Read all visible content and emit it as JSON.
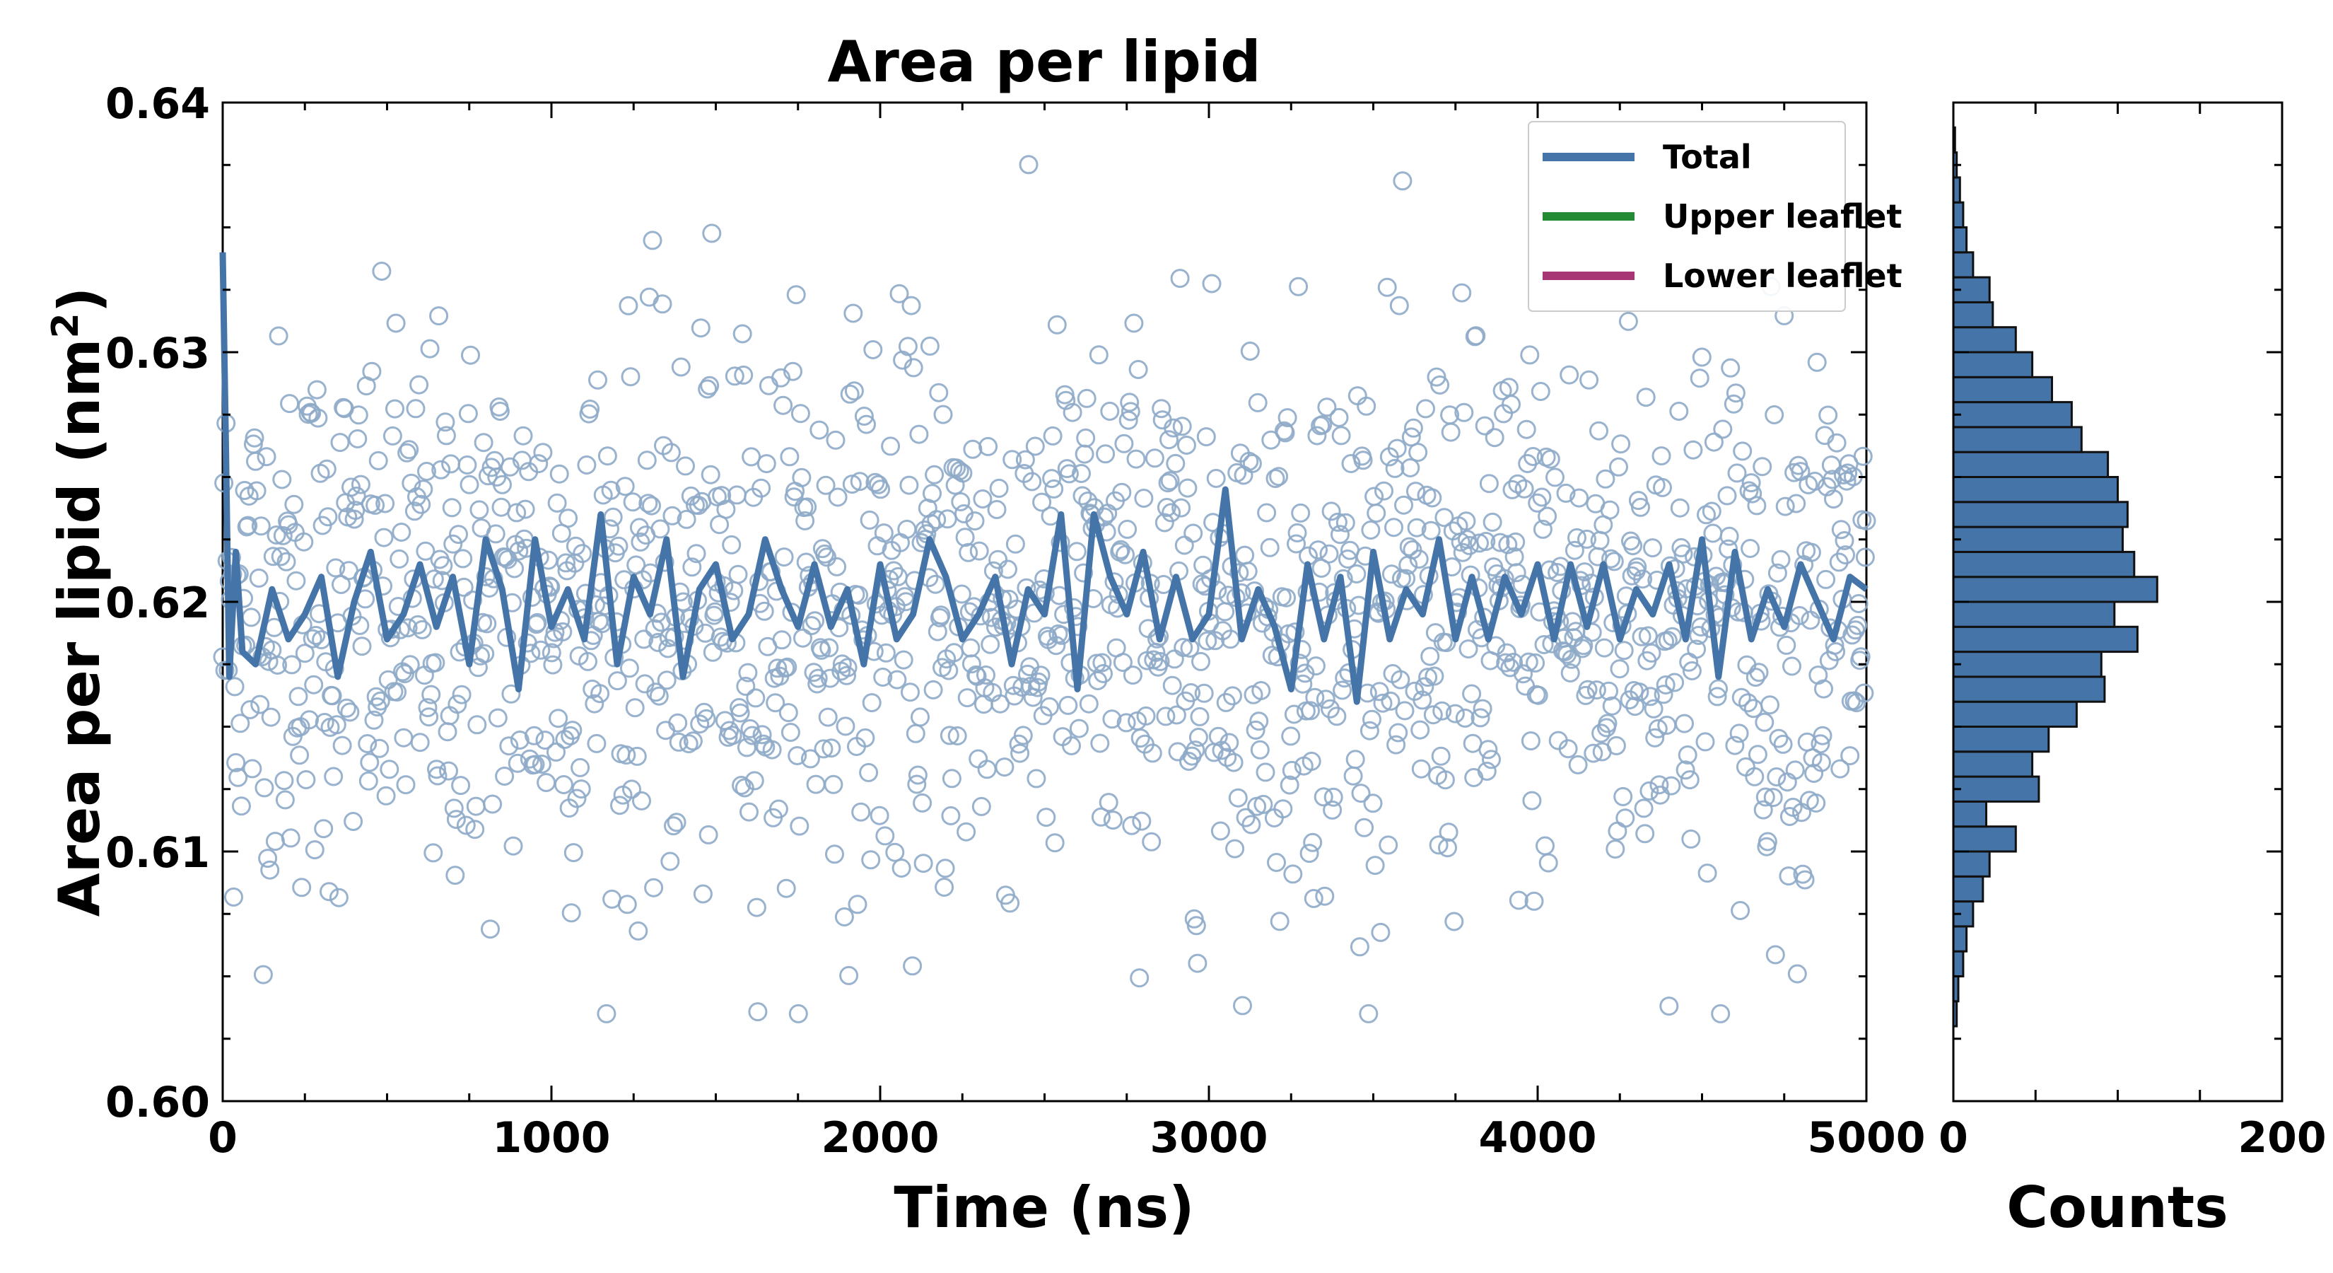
{
  "chart_data": [
    {
      "type": "scatter",
      "title": "Area per lipid",
      "xlabel": "Time (ns)",
      "ylabel": "Area per lipid (nm",
      "ylabel_sup": "2",
      "ylabel_close": ")",
      "xlim": [
        0,
        5000
      ],
      "ylim": [
        0.6,
        0.64
      ],
      "x_ticks": [
        0,
        1000,
        2000,
        3000,
        4000,
        5000
      ],
      "x_tick_labels": [
        "0",
        "1000",
        "2000",
        "3000",
        "4000",
        "5000"
      ],
      "y_ticks": [
        0.6,
        0.61,
        0.62,
        0.63,
        0.64
      ],
      "y_tick_labels": [
        "0.60",
        "0.61",
        "0.62",
        "0.63",
        "0.64"
      ],
      "grid": false,
      "legend_position": "top-right",
      "legend": [
        {
          "label": "Total",
          "color": "#4575a8"
        },
        {
          "label": "Upper leaflet",
          "color": "#228b34"
        },
        {
          "label": "Lower leaflet",
          "color": "#a63674"
        }
      ],
      "series": [
        {
          "kind": "scatter",
          "color": "#8eaac8",
          "summary": {
            "x_range": [
              0,
              5000
            ],
            "mean": 0.6195,
            "std": 0.0055,
            "n_points": 1500,
            "min": 0.6035,
            "max": 0.638
          }
        },
        {
          "name": "Total",
          "kind": "line",
          "color": "#4575a8",
          "x": [
            0,
            10,
            20,
            40,
            60,
            100,
            150,
            200,
            250,
            300,
            350,
            400,
            450,
            500,
            550,
            600,
            650,
            700,
            750,
            800,
            850,
            900,
            950,
            1000,
            1050,
            1100,
            1150,
            1200,
            1250,
            1300,
            1350,
            1400,
            1450,
            1500,
            1550,
            1600,
            1650,
            1700,
            1750,
            1800,
            1850,
            1900,
            1950,
            2000,
            2050,
            2100,
            2150,
            2200,
            2250,
            2300,
            2350,
            2400,
            2450,
            2500,
            2550,
            2600,
            2650,
            2700,
            2750,
            2800,
            2850,
            2900,
            2950,
            3000,
            3050,
            3100,
            3150,
            3200,
            3250,
            3300,
            3350,
            3400,
            3450,
            3500,
            3550,
            3600,
            3650,
            3700,
            3750,
            3800,
            3850,
            3900,
            3950,
            4000,
            4050,
            4100,
            4150,
            4200,
            4250,
            4300,
            4350,
            4400,
            4450,
            4500,
            4550,
            4600,
            4650,
            4700,
            4750,
            4800,
            4850,
            4900,
            4950,
            5000
          ],
          "y": [
            0.634,
            0.626,
            0.617,
            0.622,
            0.618,
            0.6175,
            0.6205,
            0.6185,
            0.6195,
            0.621,
            0.617,
            0.62,
            0.622,
            0.6185,
            0.6195,
            0.6215,
            0.619,
            0.621,
            0.6175,
            0.6225,
            0.6205,
            0.6165,
            0.6225,
            0.619,
            0.6205,
            0.6185,
            0.6235,
            0.6175,
            0.621,
            0.6195,
            0.6225,
            0.617,
            0.6205,
            0.6215,
            0.6185,
            0.6195,
            0.6225,
            0.6205,
            0.619,
            0.6215,
            0.619,
            0.6205,
            0.6175,
            0.6215,
            0.6185,
            0.6195,
            0.6225,
            0.621,
            0.6185,
            0.6195,
            0.621,
            0.6175,
            0.6205,
            0.6195,
            0.6235,
            0.6165,
            0.6235,
            0.621,
            0.6195,
            0.622,
            0.6185,
            0.621,
            0.6185,
            0.6195,
            0.6245,
            0.6185,
            0.6205,
            0.619,
            0.6165,
            0.6215,
            0.6185,
            0.621,
            0.616,
            0.622,
            0.6185,
            0.6205,
            0.6195,
            0.6225,
            0.6185,
            0.621,
            0.6185,
            0.621,
            0.6195,
            0.6215,
            0.6185,
            0.6215,
            0.619,
            0.6215,
            0.6185,
            0.6205,
            0.6195,
            0.6215,
            0.6185,
            0.6225,
            0.617,
            0.622,
            0.6185,
            0.6205,
            0.619,
            0.6215,
            0.62,
            0.6185,
            0.621,
            0.6205
          ]
        }
      ]
    },
    {
      "type": "bar",
      "orientation": "horizontal",
      "xlabel": "Counts",
      "xlim": [
        0,
        200
      ],
      "x_ticks": [
        0,
        200
      ],
      "x_tick_labels": [
        "0",
        "200"
      ],
      "ylim": [
        0.6,
        0.64
      ],
      "color": "#4575a8",
      "bin_width": 0.001,
      "bin_centers": [
        0.6035,
        0.6045,
        0.6055,
        0.6065,
        0.6075,
        0.6085,
        0.6095,
        0.6105,
        0.6115,
        0.6125,
        0.6135,
        0.6145,
        0.6155,
        0.6165,
        0.6175,
        0.6185,
        0.6195,
        0.6205,
        0.6215,
        0.6225,
        0.6235,
        0.6245,
        0.6255,
        0.6265,
        0.6275,
        0.6285,
        0.6295,
        0.6305,
        0.6315,
        0.6325,
        0.6335,
        0.6345,
        0.6355,
        0.6365,
        0.6375,
        0.6385
      ],
      "counts": [
        2,
        3,
        6,
        8,
        12,
        18,
        22,
        38,
        20,
        52,
        48,
        58,
        75,
        92,
        90,
        112,
        98,
        124,
        110,
        103,
        106,
        100,
        94,
        78,
        72,
        60,
        48,
        38,
        24,
        22,
        12,
        8,
        6,
        4,
        2,
        1
      ]
    }
  ]
}
